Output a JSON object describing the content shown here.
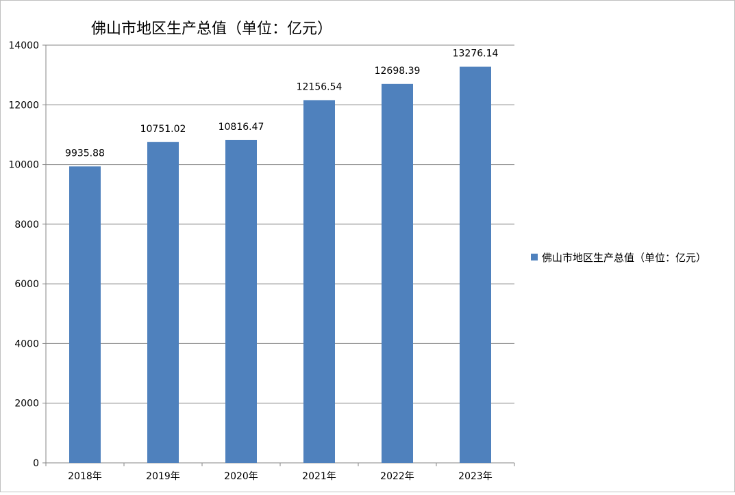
{
  "chart_data": {
    "type": "bar",
    "title": "佛山市地区生产总值（单位：亿元）",
    "categories": [
      "2018年",
      "2019年",
      "2020年",
      "2021年",
      "2022年",
      "2023年"
    ],
    "series": [
      {
        "name": "佛山市地区生产总值（单位：亿元）",
        "values": [
          9935.88,
          10751.02,
          10816.47,
          12156.54,
          12698.39,
          13276.14
        ],
        "value_labels": [
          "9935.88",
          "10751.02",
          "10816.47",
          "12156.54",
          "12698.39",
          "13276.14"
        ],
        "color": "#4f81bd"
      }
    ],
    "ylim": [
      0,
      14000
    ],
    "yticks": [
      "0",
      "2000",
      "4000",
      "6000",
      "8000",
      "10000",
      "12000",
      "14000"
    ],
    "grid": true,
    "legend_position": "right",
    "xlabel": "",
    "ylabel": ""
  }
}
